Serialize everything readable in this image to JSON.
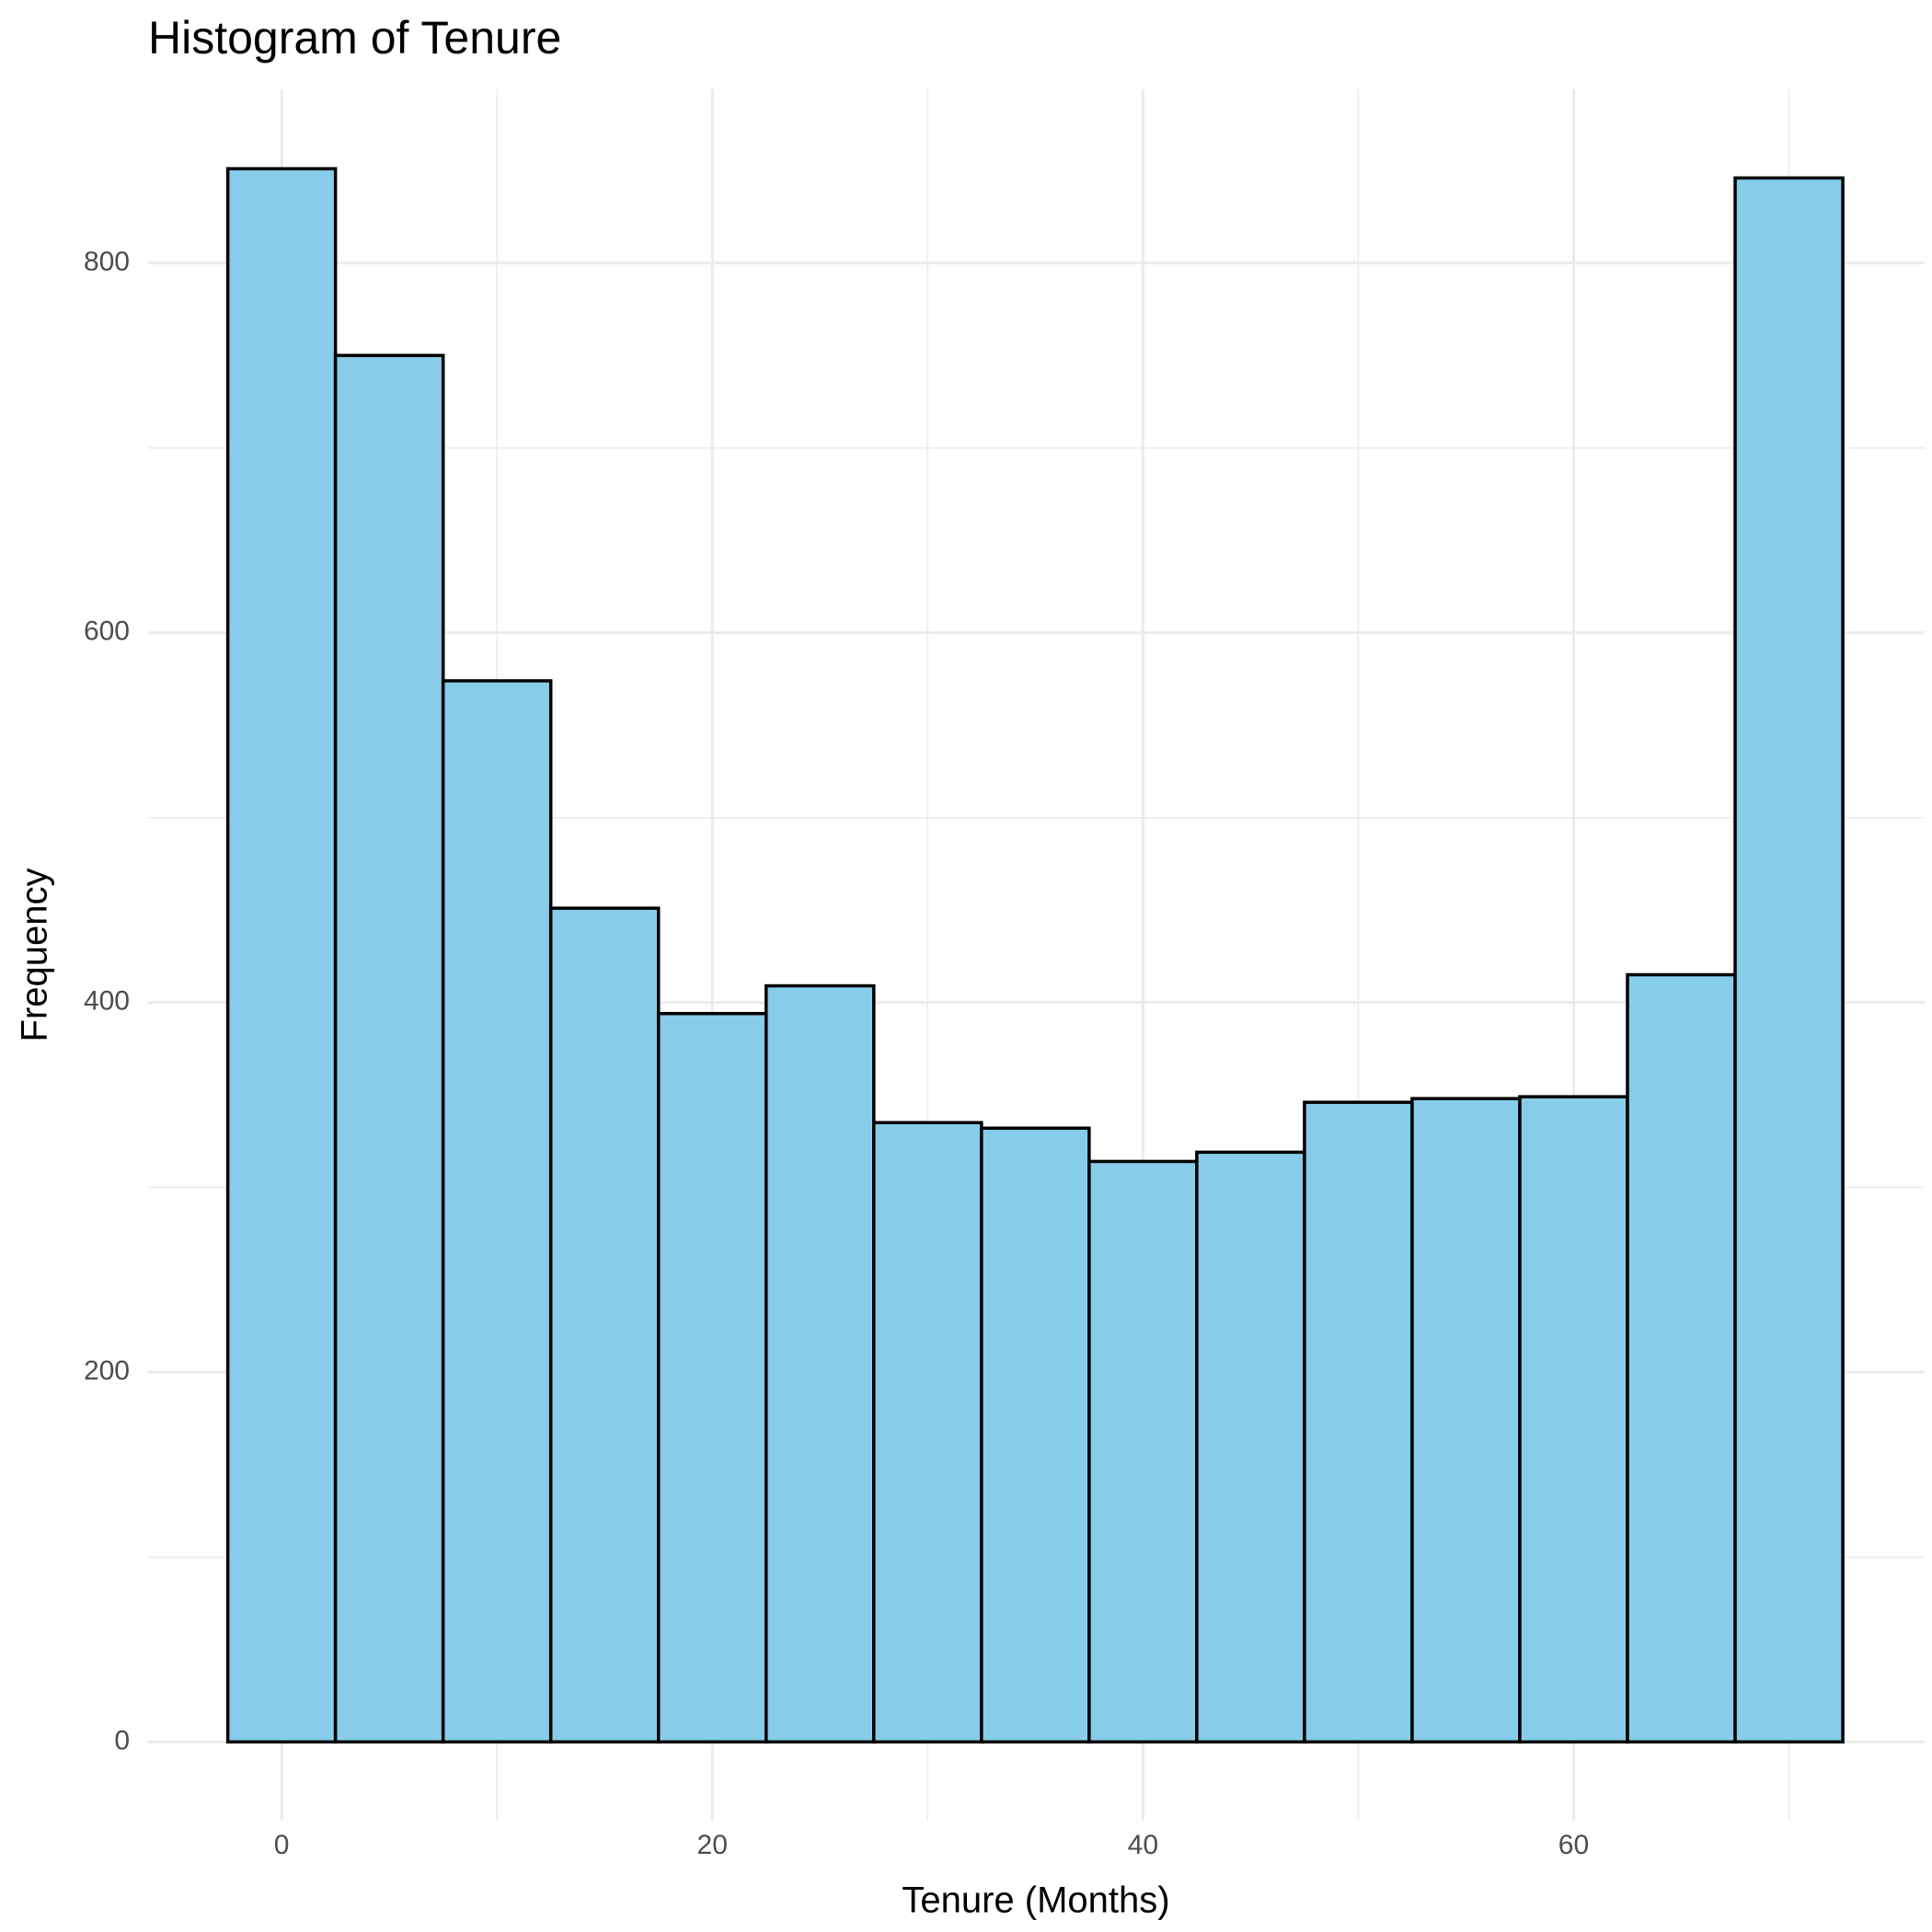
{
  "chart_data": {
    "type": "histogram",
    "title": "Histogram of Tenure",
    "x_label": "Tenure (Months)",
    "y_label": "Frequency",
    "bins": [
      -2.5,
      2.5,
      7.5,
      12.5,
      17.5,
      22.5,
      27.5,
      32.5,
      37.5,
      42.5,
      47.5,
      52.5,
      57.5,
      62.5,
      67.5,
      72.5
    ],
    "values": [
      851,
      750,
      574,
      451,
      394,
      409,
      335,
      332,
      314,
      319,
      346,
      348,
      349,
      415,
      846
    ],
    "color": "#87cdea",
    "edge_color": "#000000",
    "xlim": [
      -6.2,
      76.3
    ],
    "ylim": [
      -42.6,
      894
    ],
    "xticks": [
      0,
      20,
      40,
      60
    ],
    "yticks": [
      0,
      200,
      400,
      600,
      800
    ],
    "minor_xticks": [
      10,
      30,
      50,
      70
    ],
    "minor_yticks": [
      100,
      300,
      500,
      700
    ],
    "grid": true
  }
}
